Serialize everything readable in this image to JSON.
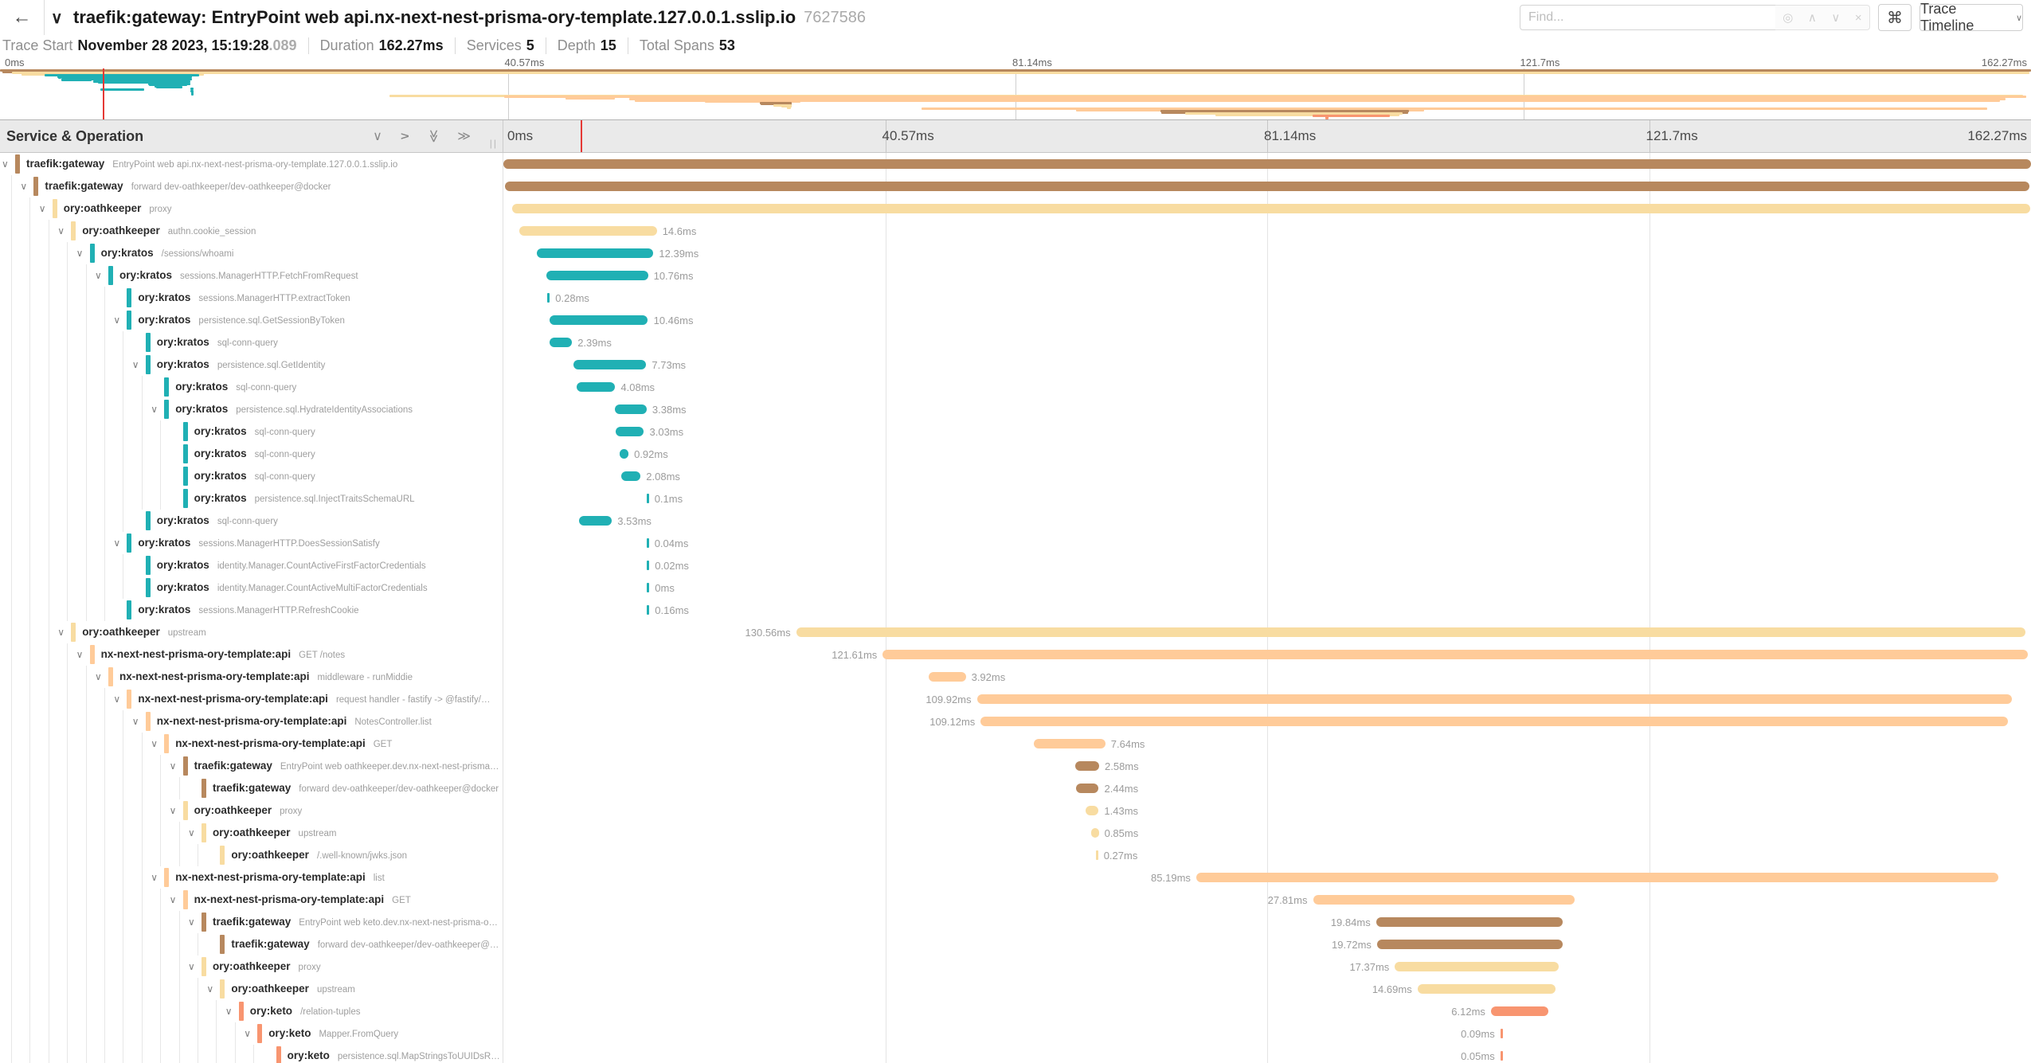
{
  "topbar": {
    "back_icon": "←",
    "collapse_icon": "∨",
    "title": "traefik:gateway: EntryPoint web api.nx-next-nest-prisma-ory-template.127.0.0.1.sslip.io",
    "trace_id": "7627586",
    "find_placeholder": "Find...",
    "find_icons": [
      "◎",
      "∧",
      "∨",
      "×"
    ],
    "shortcut_icon": "⌘",
    "view_button": "Trace Timeline",
    "view_button_caret": "∨"
  },
  "summary": {
    "items": [
      {
        "label": "Trace Start",
        "value": "November 28 2023, 15:19:28",
        "suffix": ".089"
      },
      {
        "label": "Duration",
        "value": "162.27ms",
        "suffix": ""
      },
      {
        "label": "Services",
        "value": "5",
        "suffix": ""
      },
      {
        "label": "Depth",
        "value": "15",
        "suffix": ""
      },
      {
        "label": "Total Spans",
        "value": "53",
        "suffix": ""
      }
    ]
  },
  "timeline": {
    "left_header": "Service & Operation",
    "collapse_icons": [
      {
        "glyph": "∨",
        "rot": "none",
        "name": "collapse-one-icon"
      },
      {
        "glyph": "∨",
        "rot": "m90",
        "name": "expand-one-icon"
      },
      {
        "glyph": "≫",
        "rot": "90",
        "name": "collapse-all-icon"
      },
      {
        "glyph": "≫",
        "rot": "none",
        "name": "expand-all-icon"
      }
    ],
    "resizer_grip": "||",
    "ticks": [
      "0ms",
      "40.57ms",
      "81.14ms",
      "121.7ms",
      "162.27ms"
    ],
    "tick_pcts": [
      0,
      25,
      50,
      75,
      100
    ],
    "duration_ms": 162.27,
    "cursor_pct": 5.05
  },
  "services": {
    "traefik:gateway": "#B7885E",
    "ory:oathkeeper": "#F8DCA1",
    "ory:kratos": "#20B0B4",
    "nx-next-nest-prisma-ory-template:api": "#FFCB99",
    "ory:keto": "#F89570"
  },
  "spans": [
    {
      "svc": "traefik:gateway",
      "op": "EntryPoint web api.nx-next-nest-prisma-ory-template.127.0.0.1.sslip.io",
      "depth": 0,
      "start": 0,
      "dur": 162.27,
      "label": "",
      "side": "none",
      "chev": true
    },
    {
      "svc": "traefik:gateway",
      "op": "forward dev-oathkeeper/dev-oathkeeper@docker",
      "depth": 1,
      "start": 0.2,
      "dur": 161.9,
      "label": "",
      "side": "none",
      "chev": true
    },
    {
      "svc": "ory:oathkeeper",
      "op": "proxy",
      "depth": 2,
      "start": 0.95,
      "dur": 161.2,
      "label": "",
      "side": "none",
      "chev": true
    },
    {
      "svc": "ory:oathkeeper",
      "op": "authn.cookie_session",
      "depth": 3,
      "start": 1.7,
      "dur": 14.6,
      "label": "14.6ms",
      "side": "r",
      "chev": true
    },
    {
      "svc": "ory:kratos",
      "op": "/sessions/whoami",
      "depth": 4,
      "start": 3.55,
      "dur": 12.39,
      "label": "12.39ms",
      "side": "r",
      "chev": true
    },
    {
      "svc": "ory:kratos",
      "op": "sessions.ManagerHTTP.FetchFromRequest",
      "depth": 5,
      "start": 4.6,
      "dur": 10.76,
      "label": "10.76ms",
      "side": "r",
      "chev": true
    },
    {
      "svc": "ory:kratos",
      "op": "sessions.ManagerHTTP.extractToken",
      "depth": 6,
      "start": 4.65,
      "dur": 0.28,
      "label": "0.28ms",
      "side": "r",
      "chev": false
    },
    {
      "svc": "ory:kratos",
      "op": "persistence.sql.GetSessionByToken",
      "depth": 6,
      "start": 4.9,
      "dur": 10.46,
      "label": "10.46ms",
      "side": "r",
      "chev": true
    },
    {
      "svc": "ory:kratos",
      "op": "sql-conn-query",
      "depth": 7,
      "start": 4.9,
      "dur": 2.39,
      "label": "2.39ms",
      "side": "r",
      "chev": false
    },
    {
      "svc": "ory:kratos",
      "op": "persistence.sql.GetIdentity",
      "depth": 7,
      "start": 7.45,
      "dur": 7.73,
      "label": "7.73ms",
      "side": "r",
      "chev": true
    },
    {
      "svc": "ory:kratos",
      "op": "sql-conn-query",
      "depth": 8,
      "start": 7.8,
      "dur": 4.08,
      "label": "4.08ms",
      "side": "r",
      "chev": false
    },
    {
      "svc": "ory:kratos",
      "op": "persistence.sql.HydrateIdentityAssociations",
      "depth": 8,
      "start": 11.84,
      "dur": 3.38,
      "label": "3.38ms",
      "side": "r",
      "chev": true
    },
    {
      "svc": "ory:kratos",
      "op": "sql-conn-query",
      "depth": 9,
      "start": 11.9,
      "dur": 3.03,
      "label": "3.03ms",
      "side": "r",
      "chev": false
    },
    {
      "svc": "ory:kratos",
      "op": "sql-conn-query",
      "depth": 9,
      "start": 12.37,
      "dur": 0.92,
      "label": "0.92ms",
      "side": "r",
      "chev": false
    },
    {
      "svc": "ory:kratos",
      "op": "sql-conn-query",
      "depth": 9,
      "start": 12.5,
      "dur": 2.08,
      "label": "2.08ms",
      "side": "r",
      "chev": false
    },
    {
      "svc": "ory:kratos",
      "op": "persistence.sql.InjectTraitsSchemaURL",
      "depth": 9,
      "start": 15.2,
      "dur": 0.1,
      "label": "0.1ms",
      "side": "r",
      "chev": false
    },
    {
      "svc": "ory:kratos",
      "op": "sql-conn-query",
      "depth": 7,
      "start": 8.0,
      "dur": 3.53,
      "label": "3.53ms",
      "side": "r",
      "chev": false
    },
    {
      "svc": "ory:kratos",
      "op": "sessions.ManagerHTTP.DoesSessionSatisfy",
      "depth": 6,
      "start": 15.2,
      "dur": 0.04,
      "label": "0.04ms",
      "side": "r",
      "chev": true
    },
    {
      "svc": "ory:kratos",
      "op": "identity.Manager.CountActiveFirstFactorCredentials",
      "depth": 7,
      "start": 15.25,
      "dur": 0.02,
      "label": "0.02ms",
      "side": "r",
      "chev": false
    },
    {
      "svc": "ory:kratos",
      "op": "identity.Manager.CountActiveMultiFactorCredentials",
      "depth": 7,
      "start": 15.25,
      "dur": 0.005,
      "label": "0ms",
      "side": "r",
      "chev": false
    },
    {
      "svc": "ory:kratos",
      "op": "sessions.ManagerHTTP.RefreshCookie",
      "depth": 6,
      "start": 15.25,
      "dur": 0.16,
      "label": "0.16ms",
      "side": "r",
      "chev": false
    },
    {
      "svc": "ory:oathkeeper",
      "op": "upstream",
      "depth": 3,
      "start": 31.1,
      "dur": 130.56,
      "label": "130.56ms",
      "side": "l",
      "chev": true
    },
    {
      "svc": "nx-next-nest-prisma-ory-template:api",
      "op": "GET /notes",
      "depth": 4,
      "start": 40.3,
      "dur": 121.61,
      "label": "121.61ms",
      "side": "l",
      "chev": true
    },
    {
      "svc": "nx-next-nest-prisma-ory-template:api",
      "op": "middleware - runMiddie",
      "depth": 5,
      "start": 45.2,
      "dur": 3.92,
      "label": "3.92ms",
      "side": "r",
      "chev": true
    },
    {
      "svc": "nx-next-nest-prisma-ory-template:api",
      "op": "request handler - fastify -> @fastify/…",
      "depth": 6,
      "start": 50.3,
      "dur": 109.92,
      "label": "109.92ms",
      "side": "l",
      "chev": true
    },
    {
      "svc": "nx-next-nest-prisma-ory-template:api",
      "op": "NotesController.list",
      "depth": 7,
      "start": 50.7,
      "dur": 109.12,
      "label": "109.12ms",
      "side": "l",
      "chev": true
    },
    {
      "svc": "nx-next-nest-prisma-ory-template:api",
      "op": "GET",
      "depth": 8,
      "start": 56.3,
      "dur": 7.64,
      "label": "7.64ms",
      "side": "r",
      "chev": true
    },
    {
      "svc": "traefik:gateway",
      "op": "EntryPoint web oathkeeper.dev.nx-next-nest-prisma…",
      "depth": 9,
      "start": 60.7,
      "dur": 2.58,
      "label": "2.58ms",
      "side": "r",
      "chev": true
    },
    {
      "svc": "traefik:gateway",
      "op": "forward dev-oathkeeper/dev-oathkeeper@docker",
      "depth": 10,
      "start": 60.8,
      "dur": 2.44,
      "label": "2.44ms",
      "side": "r",
      "chev": false
    },
    {
      "svc": "ory:oathkeeper",
      "op": "proxy",
      "depth": 9,
      "start": 61.8,
      "dur": 1.43,
      "label": "1.43ms",
      "side": "r",
      "chev": true
    },
    {
      "svc": "ory:oathkeeper",
      "op": "upstream",
      "depth": 10,
      "start": 62.4,
      "dur": 0.85,
      "label": "0.85ms",
      "side": "r",
      "chev": true
    },
    {
      "svc": "ory:oathkeeper",
      "op": "/.well-known/jwks.json",
      "depth": 11,
      "start": 62.9,
      "dur": 0.27,
      "label": "0.27ms",
      "side": "r",
      "chev": false
    },
    {
      "svc": "nx-next-nest-prisma-ory-template:api",
      "op": "list",
      "depth": 8,
      "start": 73.6,
      "dur": 85.19,
      "label": "85.19ms",
      "side": "l",
      "chev": true
    },
    {
      "svc": "nx-next-nest-prisma-ory-template:api",
      "op": "GET",
      "depth": 9,
      "start": 86.0,
      "dur": 27.81,
      "label": "27.81ms",
      "side": "l",
      "chev": true
    },
    {
      "svc": "traefik:gateway",
      "op": "EntryPoint web keto.dev.nx-next-nest-prisma-o…",
      "depth": 10,
      "start": 92.7,
      "dur": 19.84,
      "label": "19.84ms",
      "side": "l",
      "chev": true
    },
    {
      "svc": "traefik:gateway",
      "op": "forward dev-oathkeeper/dev-oathkeeper@…",
      "depth": 11,
      "start": 92.8,
      "dur": 19.72,
      "label": "19.72ms",
      "side": "l",
      "chev": false
    },
    {
      "svc": "ory:oathkeeper",
      "op": "proxy",
      "depth": 10,
      "start": 94.7,
      "dur": 17.37,
      "label": "17.37ms",
      "side": "l",
      "chev": true
    },
    {
      "svc": "ory:oathkeeper",
      "op": "upstream",
      "depth": 11,
      "start": 97.1,
      "dur": 14.69,
      "label": "14.69ms",
      "side": "l",
      "chev": true
    },
    {
      "svc": "ory:keto",
      "op": "/relation-tuples",
      "depth": 12,
      "start": 104.9,
      "dur": 6.12,
      "label": "6.12ms",
      "side": "l",
      "chev": true
    },
    {
      "svc": "ory:keto",
      "op": "Mapper.FromQuery",
      "depth": 13,
      "start": 105.9,
      "dur": 0.09,
      "label": "0.09ms",
      "side": "l",
      "chev": true
    },
    {
      "svc": "ory:keto",
      "op": "persistence.sql.MapStringsToUUIDsR…",
      "depth": 14,
      "start": 105.9,
      "dur": 0.05,
      "label": "0.05ms",
      "side": "l",
      "chev": false
    }
  ]
}
